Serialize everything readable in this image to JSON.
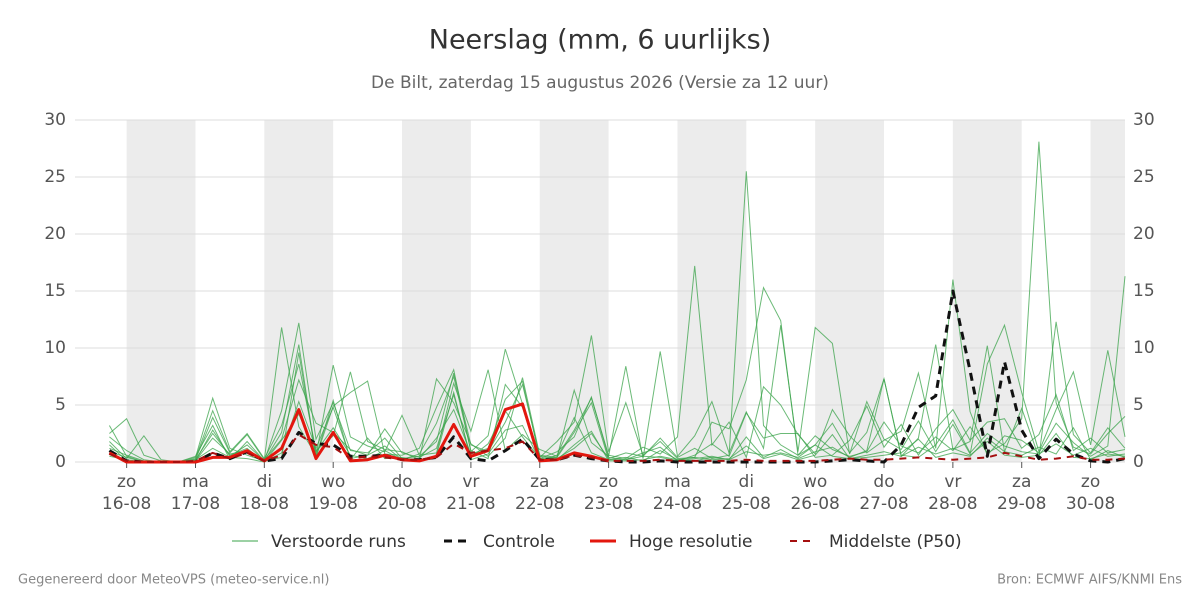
{
  "chart_data": {
    "type": "line",
    "title": "Neerslag (mm, 6 uurlijks)",
    "subtitle": "De Bilt, zaterdag 15 augustus 2026 (Versie za 12 uur)",
    "x": [
      15.75,
      16,
      16.25,
      16.5,
      16.75,
      17,
      17.25,
      17.5,
      17.75,
      18,
      18.25,
      18.5,
      18.75,
      19,
      19.25,
      19.5,
      19.75,
      20,
      20.25,
      20.5,
      20.75,
      21,
      21.25,
      21.5,
      21.75,
      22,
      22.25,
      22.5,
      22.75,
      23,
      23.25,
      23.5,
      23.75,
      24,
      24.25,
      24.5,
      24.75,
      25,
      25.25,
      25.5,
      25.75,
      26,
      26.25,
      26.5,
      26.75,
      27,
      27.25,
      27.5,
      27.75,
      28,
      28.25,
      28.5,
      28.75,
      29,
      29.25,
      29.5,
      29.75,
      30,
      30.25,
      30.5
    ],
    "xlim": [
      15.25,
      30.5
    ],
    "xticks": [
      {
        "value": 16,
        "day": "zo",
        "label": "16-08"
      },
      {
        "value": 17,
        "day": "ma",
        "label": "17-08"
      },
      {
        "value": 18,
        "day": "di",
        "label": "18-08"
      },
      {
        "value": 19,
        "day": "wo",
        "label": "19-08"
      },
      {
        "value": 20,
        "day": "do",
        "label": "20-08"
      },
      {
        "value": 21,
        "day": "vr",
        "label": "21-08"
      },
      {
        "value": 22,
        "day": "za",
        "label": "22-08"
      },
      {
        "value": 23,
        "day": "zo",
        "label": "23-08"
      },
      {
        "value": 24,
        "day": "ma",
        "label": "24-08"
      },
      {
        "value": 25,
        "day": "di",
        "label": "25-08"
      },
      {
        "value": 26,
        "day": "wo",
        "label": "26-08"
      },
      {
        "value": 27,
        "day": "do",
        "label": "27-08"
      },
      {
        "value": 28,
        "day": "vr",
        "label": "28-08"
      },
      {
        "value": 29,
        "day": "za",
        "label": "29-08"
      },
      {
        "value": 30,
        "day": "zo",
        "label": "30-08"
      }
    ],
    "ylim": [
      0,
      30
    ],
    "yticks": [
      0,
      5,
      10,
      15,
      20,
      25,
      30
    ],
    "grid": true,
    "ensemble": {
      "name": "Verstoorde runs",
      "color": "#3aa34a",
      "runs": [
        [
          3.2,
          0.5,
          0,
          0,
          0,
          0.4,
          5.6,
          1.2,
          0.6,
          0.1,
          4.5,
          12.2,
          2.0,
          5.2,
          1.0,
          0.8,
          2.1,
          0.3,
          0.5,
          1.8,
          7.8,
          1.5,
          0.9,
          3.5,
          6.8,
          0.5,
          0.3,
          1.2,
          2.5,
          0.3,
          0.8,
          0.5,
          2.1,
          0.4,
          1.2,
          0.3,
          0.6,
          25.5,
          3.2,
          1.5,
          0.6,
          2.3,
          1.1,
          0.5,
          0.9,
          3.5,
          1.4,
          0.8,
          2.2,
          1.0,
          3.1,
          0.8,
          1.6,
          3.8,
          28.1,
          5.2,
          1.3,
          0.7,
          2.5,
          4.0
        ],
        [
          2.5,
          3.8,
          0.6,
          0.1,
          0,
          0.2,
          3.9,
          0.8,
          2.4,
          0.2,
          11.8,
          3.1,
          0.6,
          8.5,
          2.2,
          1.4,
          0.9,
          4.1,
          0.6,
          0.8,
          6.9,
          2.7,
          8.1,
          1.0,
          2.4,
          1.1,
          0.5,
          2.8,
          5.6,
          0.6,
          0.3,
          1.3,
          0.7,
          2.2,
          17.2,
          1.5,
          3.5,
          0.4,
          6.6,
          5.0,
          2.4,
          0.7,
          4.6,
          2.3,
          0.8,
          1.9,
          2.7,
          7.8,
          1.2,
          16.0,
          4.4,
          0.6,
          2.3,
          1.9,
          0.8,
          3.4,
          1.7,
          0.5,
          1.4,
          16.3
        ],
        [
          1.8,
          0.3,
          2.3,
          0.2,
          0,
          0.1,
          2.8,
          0.5,
          1.5,
          0.1,
          2.6,
          10.3,
          0.4,
          4.9,
          6.1,
          7.1,
          0.7,
          0.6,
          1.2,
          4.8,
          8.1,
          0.9,
          2.3,
          9.9,
          5.1,
          0.4,
          1.8,
          3.5,
          11.1,
          0.9,
          5.2,
          0.6,
          1.8,
          0.3,
          0.4,
          3.5,
          2.9,
          7.2,
          15.3,
          12.4,
          0.6,
          1.5,
          3.4,
          0.8,
          2.6,
          7.3,
          0.5,
          2.1,
          10.3,
          1.1,
          1.8,
          10.2,
          0.9,
          4.7,
          0.4,
          12.3,
          2.4,
          0.8,
          3.0,
          1.2
        ],
        [
          1.2,
          0.6,
          0.1,
          0,
          0,
          0.3,
          4.5,
          0.9,
          2.5,
          0.3,
          3.2,
          8.6,
          1.0,
          2.3,
          7.9,
          1.8,
          1.1,
          0.9,
          0.2,
          7.3,
          5.2,
          1.6,
          0.5,
          2.1,
          7.4,
          0.6,
          0.4,
          6.3,
          1.7,
          0.5,
          8.4,
          0.3,
          9.7,
          0.5,
          2.3,
          5.3,
          0.8,
          4.4,
          1.2,
          12.0,
          0.9,
          11.8,
          10.4,
          0.7,
          5.3,
          2.0,
          1.1,
          3.6,
          0.9,
          3.3,
          0.7,
          8.6,
          12.0,
          6.1,
          0.9,
          4.6,
          7.9,
          1.5,
          9.8,
          2.2
        ],
        [
          2.2,
          1.0,
          0.2,
          0,
          0,
          0.1,
          2.1,
          0.7,
          1.0,
          0.2,
          2.0,
          7.2,
          3.4,
          2.6,
          1.1,
          0.6,
          2.9,
          0.8,
          0.4,
          1.2,
          5.9,
          0.4,
          1.6,
          4.5,
          2.2,
          0.3,
          0.9,
          2.2,
          5.7,
          0.4,
          0.2,
          0.8,
          1.3,
          0.1,
          0.6,
          1.6,
          0.5,
          4.3,
          2.1,
          2.5,
          2.5,
          0.4,
          0.6,
          1.9,
          4.9,
          1.3,
          3.3,
          0.6,
          2.9,
          4.6,
          1.9,
          3.5,
          3.8,
          1.2,
          2.4,
          5.9,
          1.0,
          2.1,
          0.8,
          1.1
        ],
        [
          0.5,
          0.2,
          0,
          0,
          0,
          0.2,
          1.2,
          0.4,
          0.3,
          0,
          0.8,
          5.3,
          1.2,
          4.8,
          0.3,
          0.6,
          1.4,
          0.2,
          0.7,
          3.4,
          7.5,
          1.0,
          0.3,
          6.8,
          4.8,
          0.2,
          0.2,
          1.5,
          2.7,
          0.1,
          0.1,
          0.2,
          0.5,
          0.2,
          0.1,
          0.4,
          0.2,
          0.9,
          0.6,
          0.8,
          0.4,
          1.5,
          0.5,
          0.3,
          0.6,
          0.9,
          0.5,
          1.3,
          0.7,
          1.2,
          0.6,
          1.8,
          0.6,
          0.4,
          0.6,
          2.5,
          0.4,
          0.3,
          0.7,
          0.5
        ],
        [
          1.5,
          0.1,
          0,
          0,
          0,
          0.5,
          3.2,
          0.2,
          1.8,
          0.1,
          0.4,
          9.6,
          0.5,
          5.4,
          0.2,
          2.1,
          0.3,
          0.4,
          0.1,
          0.6,
          6.1,
          0.2,
          0.7,
          2.8,
          3.2,
          0.1,
          0.6,
          3.9,
          0.8,
          0.2,
          0.4,
          0.1,
          1.0,
          0.2,
          0.4,
          0.2,
          0.3,
          1.4,
          0.3,
          0.7,
          0.2,
          0.6,
          2.4,
          0.3,
          0.4,
          0.6,
          0.8,
          2.0,
          0.4,
          0.8,
          0.5,
          2.1,
          0.9,
          0.6,
          1.3,
          0.7,
          3.0,
          0.2,
          1.0,
          0.4
        ],
        [
          0.9,
          0.4,
          0,
          0,
          0,
          0.2,
          2.5,
          0.6,
          1.2,
          0,
          1.9,
          4.2,
          0.9,
          3.0,
          0.6,
          0.3,
          1.0,
          0.2,
          0.3,
          2.1,
          4.6,
          0.7,
          1.2,
          5.5,
          7.1,
          0.3,
          0.4,
          2.6,
          5.2,
          0.2,
          0.2,
          0.5,
          0.4,
          0.1,
          0.3,
          0.5,
          0.2,
          2.2,
          0.4,
          1.1,
          0.3,
          0.9,
          1.3,
          0.4,
          1.0,
          7.3,
          0.6,
          0.4,
          1.5,
          3.7,
          0.8,
          2.5,
          1.4,
          0.9,
          0.7,
          1.6,
          0.6,
          1.2,
          0.5,
          0.7
        ]
      ]
    },
    "series": [
      {
        "name": "Controle",
        "color": "#111111",
        "dash": "8,6",
        "width": 3,
        "values": [
          1.0,
          0.1,
          0,
          0,
          0,
          0,
          0.8,
          0.3,
          0.9,
          0.1,
          0.3,
          2.6,
          1.6,
          1.5,
          0.5,
          0.5,
          0.6,
          0.2,
          0.2,
          0.4,
          2.2,
          0.3,
          0.1,
          1.0,
          2.0,
          0.2,
          0.2,
          0.6,
          0.3,
          0.1,
          0,
          0,
          0.1,
          0,
          0,
          0,
          0,
          0,
          0,
          0,
          0,
          0,
          0.1,
          0.2,
          0.1,
          0,
          1.5,
          4.8,
          5.8,
          15,
          8,
          0.5,
          8.8,
          2.8,
          0.3,
          2.0,
          0.7,
          0.1,
          0,
          0.3
        ]
      },
      {
        "name": "Hoge resolutie",
        "color": "#e3170e",
        "width": 3,
        "values": [
          0.8,
          0,
          0,
          0,
          0,
          0,
          0.4,
          0.4,
          1.0,
          0.1,
          1.2,
          4.6,
          0.3,
          2.6,
          0.1,
          0.2,
          0.6,
          0.2,
          0.1,
          0.5,
          3.3,
          0.5,
          1.0,
          4.6,
          5.1,
          0.1,
          0.2,
          0.8,
          0.5,
          0.1,
          null,
          null,
          null,
          null,
          null,
          null,
          null,
          null,
          null,
          null,
          null,
          null,
          null,
          null,
          null,
          null,
          null,
          null,
          null,
          null,
          null,
          null,
          null,
          null,
          null,
          null,
          null,
          null,
          null,
          null
        ]
      },
      {
        "name": "Middelste (P50)",
        "color": "#a50f0f",
        "dash": "7,6",
        "width": 2,
        "values": [
          0.7,
          0.1,
          0,
          0,
          0,
          0.1,
          0.8,
          0.3,
          0.8,
          0.1,
          0.6,
          2.4,
          1.5,
          1.3,
          0.3,
          0.5,
          0.4,
          0.2,
          0.2,
          0.4,
          1.6,
          0.8,
          1.0,
          1.2,
          1.8,
          0.2,
          0.2,
          0.6,
          0.4,
          0.1,
          0.1,
          0.1,
          0.2,
          0.1,
          0.1,
          0.1,
          0.1,
          0.2,
          0.1,
          0.1,
          0.1,
          0.1,
          0.2,
          0.3,
          0.2,
          0.2,
          0.3,
          0.4,
          0.3,
          0.2,
          0.3,
          0.4,
          0.8,
          0.5,
          0.2,
          0.3,
          0.5,
          0.2,
          0.2,
          0.3
        ]
      }
    ]
  },
  "footer": {
    "left": "Gegenereerd door MeteoVPS (meteo-service.nl)",
    "right": "Bron: ECMWF AIFS/KNMI Ens"
  }
}
